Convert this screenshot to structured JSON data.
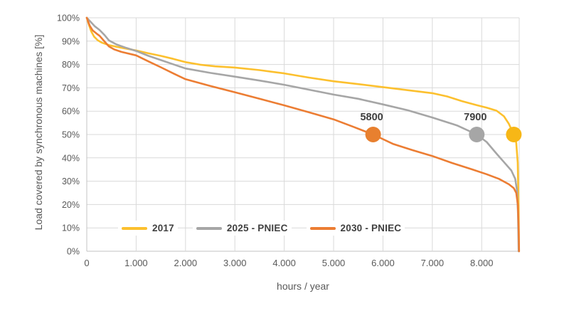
{
  "page": {
    "background": "#ffffff"
  },
  "style": {
    "grid_color": "#d9d9d9",
    "axis_color": "#c3c3c3",
    "tick_text_color": "#595959",
    "annotation_text_color": "#3f3f3f",
    "legend_text_color": "#404040"
  },
  "chart_data": {
    "type": "line",
    "title": "",
    "xlabel": "hours / year",
    "ylabel": "Load covered by synchronous machines [%]",
    "xlim": [
      0,
      8760
    ],
    "ylim": [
      0,
      100
    ],
    "grid": true,
    "legend_position": "bottom-inside",
    "x_ticks": [
      {
        "value": 0,
        "label": "0"
      },
      {
        "value": 1000,
        "label": "1.000"
      },
      {
        "value": 2000,
        "label": "2.000"
      },
      {
        "value": 3000,
        "label": "3.000"
      },
      {
        "value": 4000,
        "label": "4.000"
      },
      {
        "value": 5000,
        "label": "5.000"
      },
      {
        "value": 6000,
        "label": "6.000"
      },
      {
        "value": 7000,
        "label": "7.000"
      },
      {
        "value": 8000,
        "label": "8.000"
      }
    ],
    "y_ticks": [
      {
        "value": 0,
        "label": "0%"
      },
      {
        "value": 10,
        "label": "10%"
      },
      {
        "value": 20,
        "label": "20%"
      },
      {
        "value": 30,
        "label": "30%"
      },
      {
        "value": 40,
        "label": "40%"
      },
      {
        "value": 50,
        "label": "50%"
      },
      {
        "value": 60,
        "label": "60%"
      },
      {
        "value": 70,
        "label": "70%"
      },
      {
        "value": 80,
        "label": "80%"
      },
      {
        "value": 90,
        "label": "90%"
      },
      {
        "value": 100,
        "label": "100%"
      }
    ],
    "series": [
      {
        "name": "2017",
        "color": "#FCC02E",
        "points": [
          [
            0,
            100
          ],
          [
            40,
            97.2
          ],
          [
            90,
            94.2
          ],
          [
            150,
            91.9
          ],
          [
            220,
            90.4
          ],
          [
            300,
            89.4
          ],
          [
            450,
            88.3
          ],
          [
            600,
            87.6
          ],
          [
            800,
            86.8
          ],
          [
            1000,
            86.0
          ],
          [
            1250,
            84.8
          ],
          [
            1500,
            83.7
          ],
          [
            1750,
            82.4
          ],
          [
            2000,
            81.0
          ],
          [
            2300,
            79.9
          ],
          [
            2600,
            79.2
          ],
          [
            3000,
            78.7
          ],
          [
            3500,
            77.6
          ],
          [
            4000,
            76.2
          ],
          [
            4500,
            74.4
          ],
          [
            5000,
            72.8
          ],
          [
            5500,
            71.6
          ],
          [
            6000,
            70.3
          ],
          [
            6500,
            69.0
          ],
          [
            7000,
            67.7
          ],
          [
            7300,
            66.3
          ],
          [
            7600,
            64.3
          ],
          [
            7900,
            62.6
          ],
          [
            8100,
            61.5
          ],
          [
            8300,
            60.2
          ],
          [
            8450,
            57.8
          ],
          [
            8550,
            54.6
          ],
          [
            8650,
            50.0
          ],
          [
            8700,
            46.5
          ],
          [
            8730,
            38.0
          ],
          [
            8748,
            18.0
          ],
          [
            8756,
            0
          ]
        ]
      },
      {
        "name": "2025 - PNIEC",
        "color": "#A6A6A6",
        "points": [
          [
            0,
            100
          ],
          [
            80,
            98.2
          ],
          [
            160,
            96.4
          ],
          [
            260,
            94.8
          ],
          [
            360,
            92.6
          ],
          [
            450,
            90.3
          ],
          [
            600,
            88.6
          ],
          [
            800,
            87.1
          ],
          [
            1000,
            85.8
          ],
          [
            1250,
            83.7
          ],
          [
            1500,
            81.9
          ],
          [
            1750,
            80.1
          ],
          [
            2000,
            78.3
          ],
          [
            2500,
            76.4
          ],
          [
            3000,
            74.8
          ],
          [
            3500,
            73.1
          ],
          [
            4000,
            71.3
          ],
          [
            4500,
            69.2
          ],
          [
            5000,
            67.1
          ],
          [
            5500,
            65.3
          ],
          [
            6000,
            62.9
          ],
          [
            6500,
            60.4
          ],
          [
            7000,
            57.3
          ],
          [
            7500,
            53.9
          ],
          [
            7900,
            50.0
          ],
          [
            8100,
            46.8
          ],
          [
            8300,
            41.8
          ],
          [
            8450,
            38.2
          ],
          [
            8600,
            34.6
          ],
          [
            8680,
            31.0
          ],
          [
            8715,
            26.0
          ],
          [
            8735,
            16.0
          ],
          [
            8748,
            0
          ]
        ]
      },
      {
        "name": "2030 - PNIEC",
        "color": "#EC7D33",
        "points": [
          [
            0,
            100
          ],
          [
            60,
            96.6
          ],
          [
            120,
            94.6
          ],
          [
            200,
            93.2
          ],
          [
            260,
            92.3
          ],
          [
            350,
            90.1
          ],
          [
            450,
            87.7
          ],
          [
            550,
            86.5
          ],
          [
            700,
            85.4
          ],
          [
            1000,
            83.9
          ],
          [
            1250,
            81.3
          ],
          [
            1500,
            78.8
          ],
          [
            1750,
            76.2
          ],
          [
            2000,
            73.7
          ],
          [
            2500,
            70.8
          ],
          [
            3000,
            68.1
          ],
          [
            3500,
            65.3
          ],
          [
            4000,
            62.5
          ],
          [
            4500,
            59.5
          ],
          [
            5000,
            56.5
          ],
          [
            5400,
            53.3
          ],
          [
            5800,
            50.0
          ],
          [
            6200,
            46.0
          ],
          [
            6600,
            43.3
          ],
          [
            7000,
            40.8
          ],
          [
            7400,
            37.8
          ],
          [
            7800,
            35.1
          ],
          [
            8100,
            33.0
          ],
          [
            8350,
            31.0
          ],
          [
            8550,
            28.7
          ],
          [
            8650,
            27.0
          ],
          [
            8700,
            25.0
          ],
          [
            8732,
            20.0
          ],
          [
            8748,
            10.0
          ],
          [
            8757,
            0
          ]
        ]
      }
    ],
    "markers": [
      {
        "series": "2030 - PNIEC",
        "x": 5800,
        "y": 50,
        "label": "5800",
        "color": "#E8802F"
      },
      {
        "series": "2025 - PNIEC",
        "x": 7900,
        "y": 50,
        "label": "7900",
        "color": "#A6A6A6"
      },
      {
        "series": "2017",
        "x": 8650,
        "y": 50,
        "label": "",
        "color": "#F7B716"
      }
    ]
  }
}
